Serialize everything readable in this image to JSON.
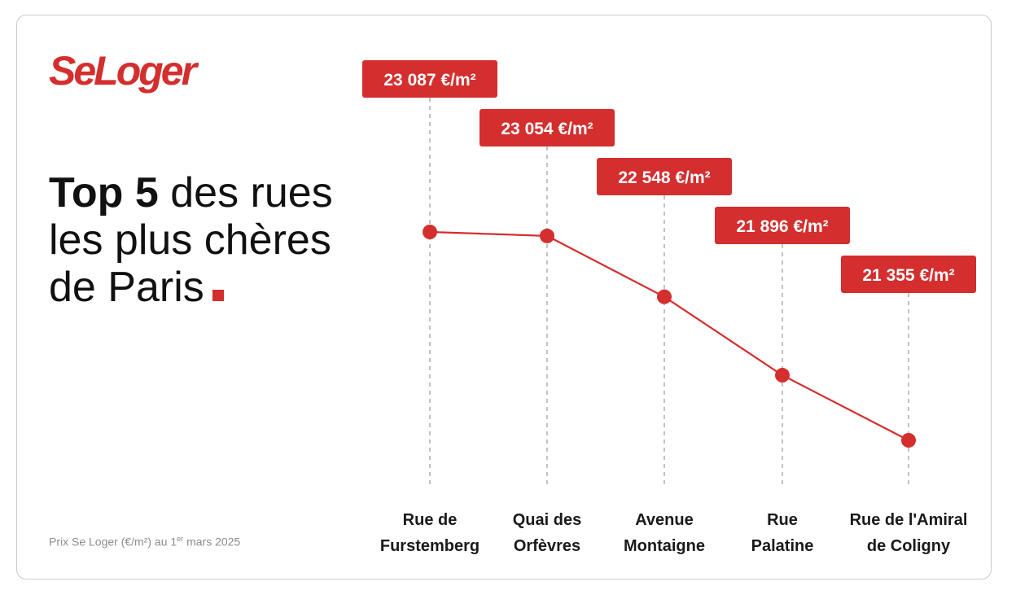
{
  "brand": {
    "logo_text": "SeLoger",
    "accent_color": "#d42e2e"
  },
  "headline": {
    "bold": "Top 5",
    "line1_rest": " des rues",
    "line2": "les plus chères",
    "line3": "de Paris"
  },
  "footnote": {
    "text": "Prix Se Loger (€/m²) au 1",
    "superscript": "er",
    "suffix": " mars 2025"
  },
  "chart_data": {
    "type": "line",
    "title": "Top 5 des rues les plus chères de Paris",
    "xlabel": "",
    "ylabel": "",
    "grid": false,
    "legend": "none",
    "unit": "€/m²",
    "categories": [
      [
        "Rue de",
        "Furstemberg"
      ],
      [
        "Quai des",
        "Orfèvres"
      ],
      [
        "Avenue",
        "Montaigne"
      ],
      [
        "Rue",
        "Palatine"
      ],
      [
        "Rue de l'Amiral",
        "de Coligny"
      ]
    ],
    "values": [
      23087,
      23054,
      22548,
      21896,
      21355
    ],
    "value_labels": [
      "23 087 €/m²",
      "23 054 €/m²",
      "22 548 €/m²",
      "21 896 €/m²",
      "21 355 €/m²"
    ],
    "line_color": "#d42e2e"
  }
}
